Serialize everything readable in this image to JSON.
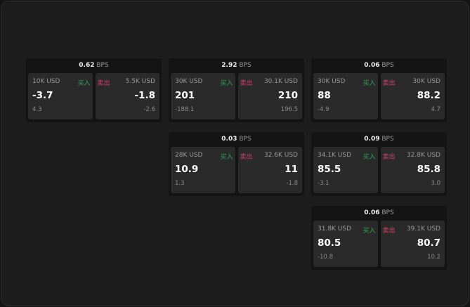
{
  "colors": {
    "buy": "#2fa25a",
    "sell": "#d2406a",
    "background": "#1d1d1d",
    "cell": "#2a2a2a"
  },
  "widgets": [
    {
      "bps": "0.62",
      "unit": "BPS",
      "buy": {
        "size": "10K USD",
        "label": "买入",
        "price": "-3.7",
        "change": "4.3"
      },
      "sell": {
        "size": "5.5K USD",
        "label": "卖出",
        "price": "-1.8",
        "change": "-2.6"
      }
    },
    {
      "bps": "2.92",
      "unit": "BPS",
      "buy": {
        "size": "30K USD",
        "label": "买入",
        "price": "201",
        "change": "-188.1"
      },
      "sell": {
        "size": "30.1K USD",
        "label": "卖出",
        "price": "210",
        "change": "196.5"
      }
    },
    {
      "bps": "0.06",
      "unit": "BPS",
      "buy": {
        "size": "30K USD",
        "label": "买入",
        "price": "88",
        "change": "-4.9"
      },
      "sell": {
        "size": "30K USD",
        "label": "卖出",
        "price": "88.2",
        "change": "4.7"
      }
    },
    {
      "bps": "0.03",
      "unit": "BPS",
      "buy": {
        "size": "28K USD",
        "label": "买入",
        "price": "10.9",
        "change": "1.3"
      },
      "sell": {
        "size": "32.6K USD",
        "label": "卖出",
        "price": "11",
        "change": "-1.8"
      }
    },
    {
      "bps": "0.09",
      "unit": "BPS",
      "buy": {
        "size": "34.1K USD",
        "label": "买入",
        "price": "85.5",
        "change": "-3.1"
      },
      "sell": {
        "size": "32.8K USD",
        "label": "卖出",
        "price": "85.8",
        "change": "3.0"
      }
    },
    {
      "bps": "0.06",
      "unit": "BPS",
      "buy": {
        "size": "31.8K USD",
        "label": "买入",
        "price": "80.5",
        "change": "-10.8"
      },
      "sell": {
        "size": "39.1K USD",
        "label": "卖出",
        "price": "80.7",
        "change": "10.2"
      }
    }
  ]
}
